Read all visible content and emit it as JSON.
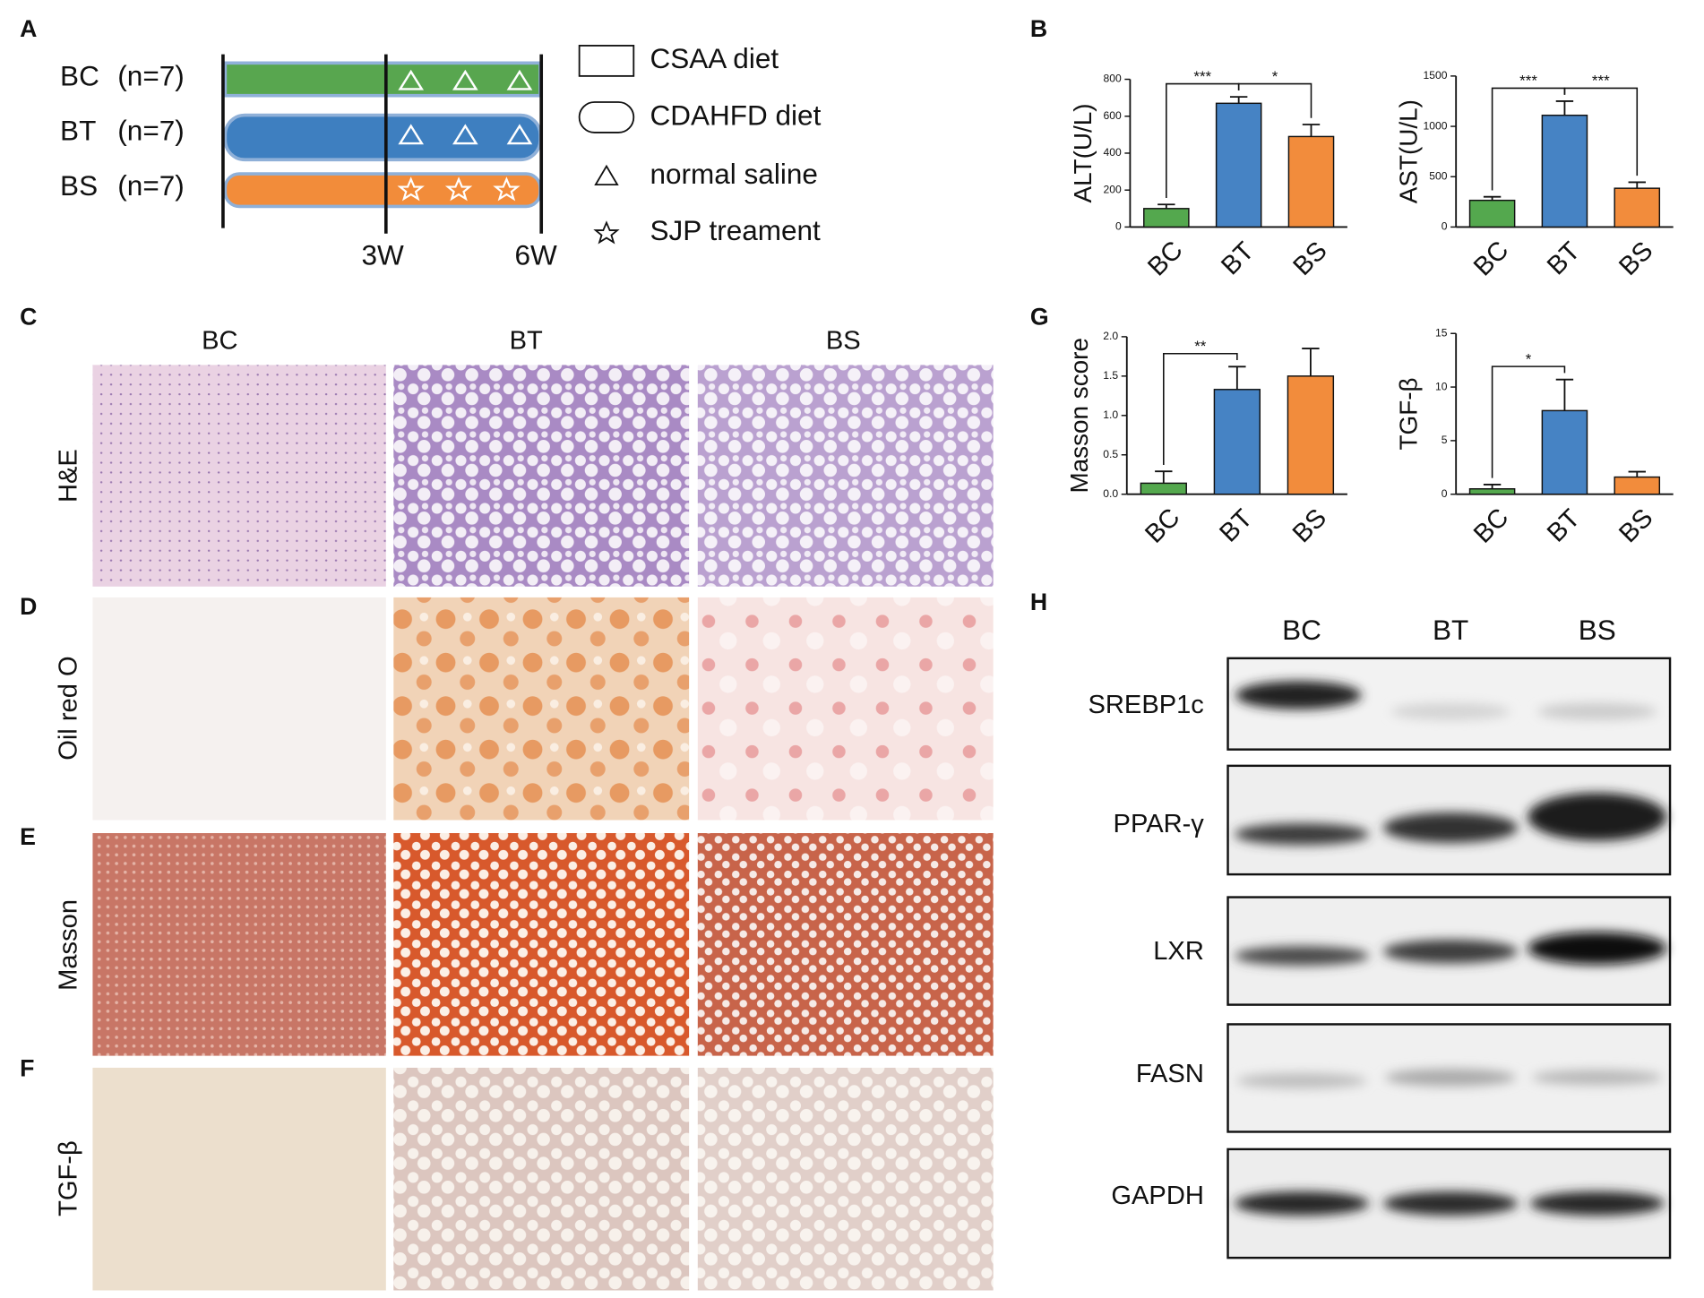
{
  "panel_labels": [
    "A",
    "B",
    "C",
    "D",
    "E",
    "F",
    "G",
    "H"
  ],
  "timeline": {
    "groups": [
      {
        "name": "BC",
        "n": "(n=7)"
      },
      {
        "name": "BT",
        "n": "(n=7)"
      },
      {
        "name": "BS",
        "n": "(n=7)"
      }
    ],
    "ticks": [
      "3W",
      "6W"
    ],
    "legend": [
      "CSAA diet",
      "CDAHFD diet",
      "normal saline",
      "SJP treament"
    ]
  },
  "histology": {
    "columns": [
      "BC",
      "BT",
      "BS"
    ],
    "rows": [
      "H&E",
      "Oil red O",
      "Masson",
      "TGF-β"
    ]
  },
  "western_blot": {
    "columns": [
      "BC",
      "BT",
      "BS"
    ],
    "proteins": [
      "SREBP1c",
      "PPAR-γ",
      "LXR",
      "FASN",
      "GAPDH"
    ]
  },
  "chart_data": [
    {
      "type": "bar",
      "ylabel": "ALT(U/L)",
      "categories": [
        "BC",
        "BT",
        "BS"
      ],
      "values": [
        100,
        670,
        490
      ],
      "errors": [
        22,
        35,
        65
      ],
      "colors": [
        "#54a84e",
        "#4683c4",
        "#f28c3c"
      ],
      "ylim": [
        0,
        800
      ],
      "yticks": [
        0,
        200,
        400,
        600,
        800
      ],
      "significance": [
        {
          "label": "***",
          "pair": [
            "BC",
            "BT"
          ]
        },
        {
          "label": "*",
          "pair": [
            "BT",
            "BS"
          ]
        }
      ]
    },
    {
      "type": "bar",
      "ylabel": "AST(U/L)",
      "categories": [
        "BC",
        "BT",
        "BS"
      ],
      "values": [
        265,
        1110,
        385
      ],
      "errors": [
        35,
        140,
        60
      ],
      "colors": [
        "#54a84e",
        "#4683c4",
        "#f28c3c"
      ],
      "ylim": [
        0,
        1500
      ],
      "yticks": [
        0,
        500,
        1000,
        1500
      ],
      "significance": [
        {
          "label": "***",
          "pair": [
            "BC",
            "BT"
          ]
        },
        {
          "label": "***",
          "pair": [
            "BT",
            "BS"
          ]
        }
      ]
    },
    {
      "type": "bar",
      "ylabel": "Masson score",
      "categories": [
        "BC",
        "BT",
        "BS"
      ],
      "values": [
        0.14,
        1.33,
        1.5
      ],
      "errors": [
        0.15,
        0.29,
        0.35
      ],
      "colors": [
        "#54a84e",
        "#4683c4",
        "#f28c3c"
      ],
      "ylim": [
        0,
        2
      ],
      "yticks": [
        {
          "value": 0,
          "label": "0.0"
        },
        {
          "value": 0.5,
          "label": "0.5"
        },
        {
          "value": 1,
          "label": "1.0"
        },
        {
          "value": 1.5,
          "label": "1.5"
        },
        {
          "value": 2,
          "label": "2.0"
        }
      ],
      "significance": [
        {
          "label": "**",
          "pair": [
            "BC",
            "BT"
          ]
        }
      ]
    },
    {
      "type": "bar",
      "ylabel": "TGF-β",
      "categories": [
        "BC",
        "BT",
        "BS"
      ],
      "values": [
        0.5,
        7.8,
        1.6
      ],
      "errors": [
        0.4,
        2.9,
        0.5
      ],
      "colors": [
        "#54a84e",
        "#4683c4",
        "#f28c3c"
      ],
      "ylim": [
        0,
        15
      ],
      "yticks": [
        0,
        5,
        10,
        15
      ],
      "significance": [
        {
          "label": "*",
          "pair": [
            "BC",
            "BT"
          ]
        }
      ]
    }
  ]
}
